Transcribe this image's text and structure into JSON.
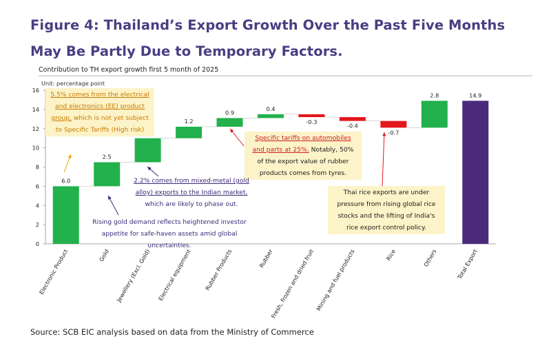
{
  "figure_title": "Figure 4: Thailand’s Export Growth Over the Past Five Months May Be Partly Due to Temporary Factors.",
  "source": "Source: SCB EIC analysis based on data from the Ministry of Commerce",
  "colors": {
    "title": "#4a3d82",
    "increase": "#22b14c",
    "decrease": "#e3171c",
    "total": "#4b2a7b",
    "annotation_box": "#fdf3c8",
    "annotation_purple": "#3e2a7a"
  },
  "chart_data": {
    "type": "waterfall",
    "title": "Contribution to TH export growth first 5 month of 2025",
    "ylabel": "Unit: percentage point",
    "ylim": [
      0,
      16
    ],
    "yticks": [
      0,
      2,
      4,
      6,
      8,
      10,
      12,
      14,
      16
    ],
    "grid": false,
    "categories": [
      "Electronic Product",
      "Gold",
      "Jewellery (Excl. Gold)",
      "Electrical equipment",
      "Rubber Products",
      "Rubber",
      "Fresh, frozen and dried fruit",
      "Mining and fuel products",
      "Rice",
      "Others",
      "Total Export"
    ],
    "values": [
      6.0,
      2.5,
      2.5,
      1.2,
      0.9,
      0.4,
      -0.3,
      -0.4,
      -0.7,
      2.8,
      14.9
    ],
    "value_labels": [
      "6.0",
      "2.5",
      "2.5",
      "1.2",
      "0.9",
      "0.4",
      "-0.3",
      "-0.4",
      "-0.7",
      "2.8",
      "14.9"
    ],
    "is_total": [
      false,
      false,
      false,
      false,
      false,
      false,
      false,
      false,
      false,
      false,
      true
    ]
  },
  "annotations": {
    "electronics": {
      "u1": "5.5% comes from the electrical and electronics (EE) product group,",
      "rest": " which is not yet subject to Specific Tariffs  (High risk)"
    },
    "gold": {
      "text": "Rising gold demand reflects heightened investor appetite for safe-haven assets amid global uncertainties."
    },
    "jewellery": {
      "u1": "2.2% comes from mixed-metal (gold alloy) exports to the Indian market,",
      "rest": " which are likely to phase out."
    },
    "rubber": {
      "u1": "Specific tariffs on automobiles and parts at 25%.",
      "rest": " Notably, 50% of the export value of rubber products comes from tyres."
    },
    "rice": {
      "text": "Thai rice exports are under pressure from rising global rice stocks and the lifting of India's rice export control policy."
    }
  }
}
